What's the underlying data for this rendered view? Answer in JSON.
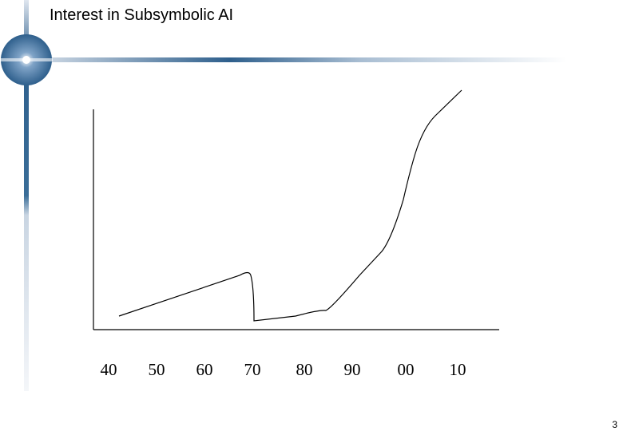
{
  "slide": {
    "title": "Interest in Subsymbolic AI",
    "axis_labels": [
      "40",
      "50",
      "60",
      "70",
      "80",
      "90",
      "00",
      "10"
    ],
    "page_number": "3"
  }
}
